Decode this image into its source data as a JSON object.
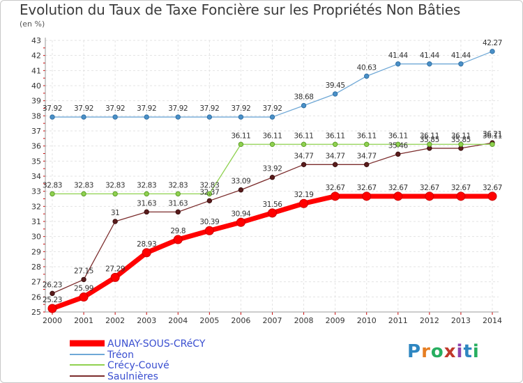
{
  "chart_data": {
    "type": "line",
    "title": "Evolution du Taux de Taxe Foncière sur les Propriétés Non Bâties",
    "subtitle": "(en %)",
    "x": [
      "2000",
      "2001",
      "2002",
      "2003",
      "2004",
      "2005",
      "2006",
      "2007",
      "2008",
      "2009",
      "2010",
      "2011",
      "2012",
      "2013",
      "2014"
    ],
    "ylim": [
      25,
      43
    ],
    "yticks": [
      25,
      26,
      27,
      28,
      29,
      30,
      31,
      32,
      33,
      34,
      35,
      36,
      37,
      38,
      39,
      40,
      41,
      42,
      43
    ],
    "grid": true,
    "legend_position": "bottom-left",
    "series": [
      {
        "name": "AUNAY-SOUS-CRéCY",
        "color": "#ff0000",
        "values": [
          25.23,
          25.99,
          27.29,
          28.93,
          29.8,
          30.39,
          30.94,
          31.56,
          32.19,
          32.67,
          32.67,
          32.67,
          32.67,
          32.67,
          32.67
        ],
        "labels": [
          "25.23",
          "25.99",
          "27.29",
          "28.93",
          "29.8",
          "30.39",
          "30.94",
          "31.56",
          "32.19",
          "32.67",
          "32.67",
          "32.67",
          "32.67",
          "32.67",
          "32.67"
        ]
      },
      {
        "name": "Tréon",
        "color": "#6fa8d6",
        "values": [
          37.92,
          37.92,
          37.92,
          37.92,
          37.92,
          37.92,
          37.92,
          37.92,
          38.68,
          39.45,
          40.63,
          41.44,
          41.44,
          41.44,
          42.27
        ],
        "labels": [
          "37.92",
          "37.92",
          "37.92",
          "37.92",
          "37.92",
          "37.92",
          "37.92",
          "37.92",
          "38.68",
          "39.45",
          "40.63",
          "41.44",
          "41.44",
          "41.44",
          "42.27"
        ]
      },
      {
        "name": "Crécy-Couvé",
        "color": "#8fd14f",
        "values": [
          32.83,
          32.83,
          32.83,
          32.83,
          32.83,
          32.83,
          36.11,
          36.11,
          36.11,
          36.11,
          36.11,
          36.11,
          36.11,
          36.11,
          36.11
        ],
        "labels": [
          "32.83",
          "32.83",
          "32.83",
          "32.83",
          "32.83",
          "32.83",
          "36.11",
          "36.11",
          "36.11",
          "36.11",
          "36.11",
          "36.11",
          "36.11",
          "36.11",
          "36.11"
        ]
      },
      {
        "name": "Saulnières",
        "color": "#7b2c2c",
        "values": [
          26.23,
          27.15,
          31,
          31.63,
          31.63,
          32.37,
          33.09,
          33.92,
          34.77,
          34.77,
          34.77,
          35.46,
          35.85,
          35.85,
          36.21
        ],
        "labels": [
          "26.23",
          "27.15",
          "31",
          "31.63",
          "31.63",
          "32.37",
          "33.09",
          "33.92",
          "34.77",
          "34.77",
          "34.77",
          "35.46",
          "35.85",
          "35.85",
          "36.21"
        ]
      }
    ]
  },
  "brand": {
    "logo_letters": [
      "P",
      "r",
      "o",
      "x",
      "i",
      "t",
      "i"
    ]
  }
}
